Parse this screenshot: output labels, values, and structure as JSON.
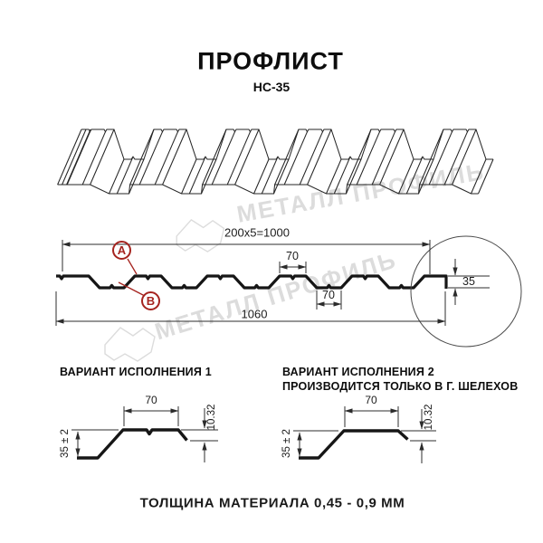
{
  "header": {
    "title": "ПРОФЛИСТ",
    "subtitle": "НС-35"
  },
  "watermark": {
    "text": "МЕТАЛЛ ПРОФИЛЬ"
  },
  "cross_section": {
    "dim_cover_width": "200x5=1000",
    "dim_total_width": "1060",
    "dim_rib_top": "70",
    "dim_rib_bottom": "70",
    "dim_height": "35",
    "marker_a": "A",
    "marker_b": "B"
  },
  "variant1": {
    "title": "ВАРИАНТ ИСПОЛНЕНИЯ 1",
    "dim_width": "70",
    "dim_lip": "10.32",
    "dim_height": "35 ± 2"
  },
  "variant2": {
    "title": "ВАРИАНТ ИСПОЛНЕНИЯ 2",
    "subtitle": "ПРОИЗВОДИТСЯ ТОЛЬКО В Г. ШЕЛЕХОВ",
    "dim_width": "70",
    "dim_lip": "10.32",
    "dim_height": "35 ± 2"
  },
  "footer": {
    "note": "ТОЛЩИНА МАТЕРИАЛА 0,45 - 0,9 ММ"
  },
  "colors": {
    "accent_red": "#a5241f",
    "line": "#1c1c1c",
    "watermark": "#dcdcdc"
  }
}
